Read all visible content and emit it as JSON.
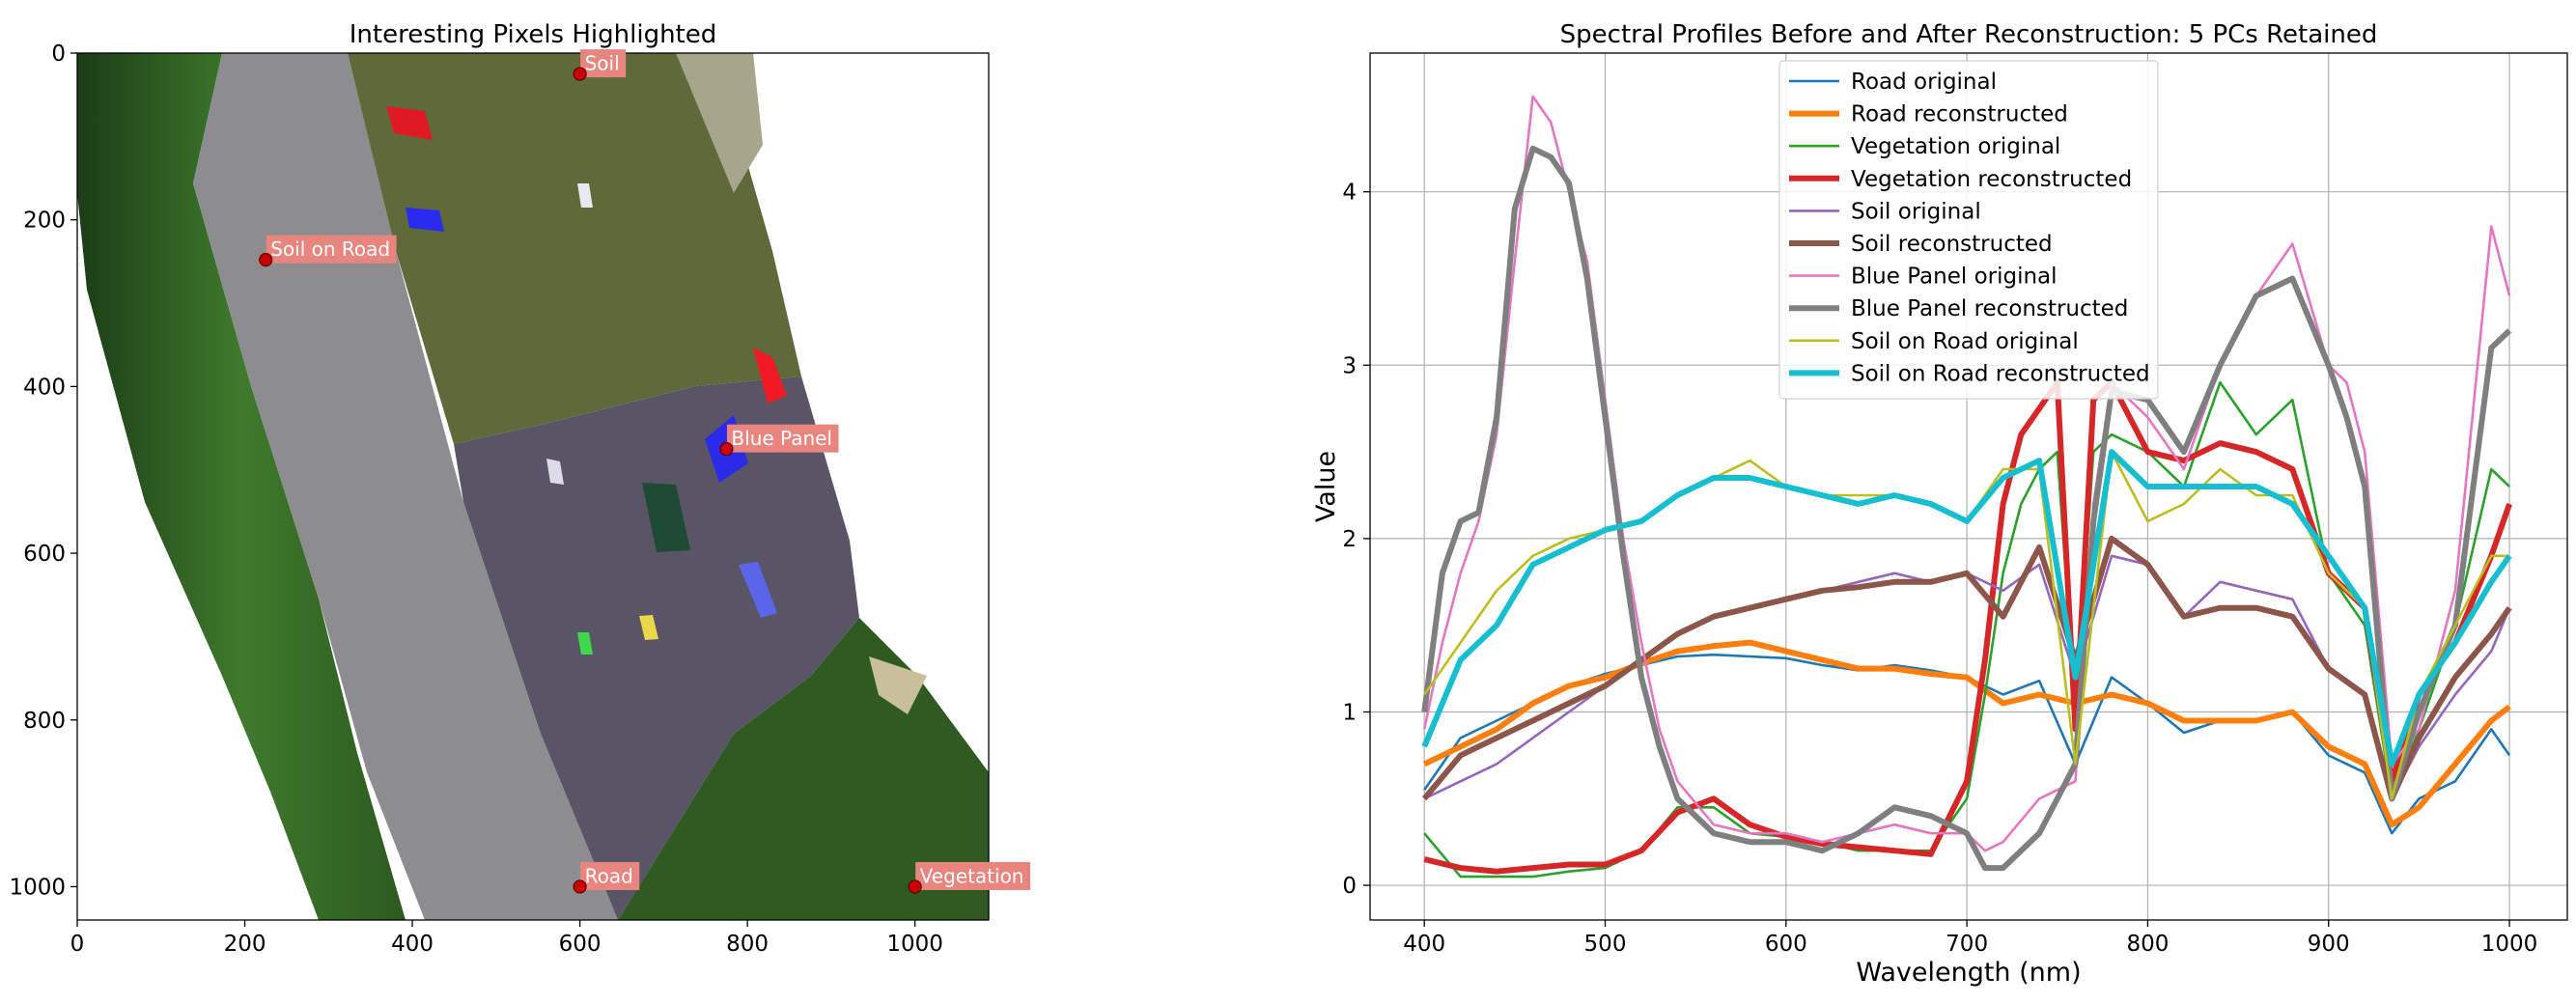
{
  "chart_data": [
    {
      "type": "image",
      "title": "Interesting Pixels Highlighted",
      "xlim": [
        0,
        1088
      ],
      "ylim": [
        1040,
        0
      ],
      "x_ticks": [
        0,
        200,
        400,
        600,
        800,
        1000
      ],
      "y_ticks": [
        0,
        200,
        400,
        600,
        800,
        1000
      ],
      "points": [
        {
          "label": "Soil",
          "x": 600,
          "y": 25
        },
        {
          "label": "Soil on Road",
          "x": 225,
          "y": 248
        },
        {
          "label": "Blue Panel",
          "x": 775,
          "y": 475
        },
        {
          "label": "Road",
          "x": 600,
          "y": 1000
        },
        {
          "label": "Vegetation",
          "x": 1000,
          "y": 1000
        }
      ],
      "marker_color": "#cc0000",
      "annotation_color": "#e8857f"
    },
    {
      "type": "line",
      "title": "Spectral Profiles Before and After Reconstruction: 5 PCs Retained",
      "xlabel": "Wavelength (nm)",
      "ylabel": "Value",
      "xlim": [
        370,
        1032
      ],
      "ylim": [
        -0.2,
        4.8
      ],
      "x_ticks": [
        400,
        500,
        600,
        700,
        800,
        900,
        1000
      ],
      "y_ticks": [
        0,
        1,
        2,
        3,
        4
      ],
      "grid": true,
      "legend_position": "top-center",
      "series": [
        {
          "name": "Road original",
          "color": "#1f77b4",
          "reconstructed": false,
          "x": [
            400,
            420,
            440,
            460,
            480,
            500,
            520,
            540,
            560,
            580,
            600,
            620,
            640,
            660,
            680,
            700,
            720,
            740,
            760,
            780,
            800,
            820,
            840,
            860,
            880,
            900,
            920,
            935,
            950,
            970,
            990,
            1000
          ],
          "y": [
            0.55,
            0.85,
            0.95,
            1.05,
            1.15,
            1.22,
            1.27,
            1.32,
            1.33,
            1.32,
            1.31,
            1.27,
            1.24,
            1.27,
            1.24,
            1.2,
            1.1,
            1.18,
            0.7,
            1.2,
            1.05,
            0.88,
            0.95,
            0.95,
            1.0,
            0.75,
            0.65,
            0.3,
            0.5,
            0.6,
            0.9,
            0.75
          ]
        },
        {
          "name": "Road reconstructed",
          "color": "#ff7f0e",
          "reconstructed": true,
          "x": [
            400,
            420,
            440,
            460,
            480,
            500,
            520,
            540,
            560,
            580,
            600,
            620,
            640,
            660,
            680,
            700,
            720,
            740,
            760,
            780,
            800,
            820,
            840,
            860,
            880,
            900,
            920,
            935,
            950,
            970,
            990,
            1000
          ],
          "y": [
            0.7,
            0.8,
            0.9,
            1.05,
            1.15,
            1.2,
            1.28,
            1.35,
            1.38,
            1.4,
            1.35,
            1.3,
            1.25,
            1.25,
            1.22,
            1.2,
            1.05,
            1.1,
            1.05,
            1.1,
            1.05,
            0.95,
            0.95,
            0.95,
            1.0,
            0.8,
            0.7,
            0.35,
            0.45,
            0.7,
            0.95,
            1.03
          ]
        },
        {
          "name": "Vegetation original",
          "color": "#2ca02c",
          "reconstructed": false,
          "x": [
            400,
            420,
            440,
            460,
            480,
            500,
            520,
            540,
            560,
            580,
            600,
            620,
            640,
            660,
            680,
            700,
            710,
            720,
            730,
            740,
            750,
            760,
            770,
            780,
            800,
            820,
            840,
            860,
            880,
            900,
            920,
            935,
            950,
            970,
            990,
            1000
          ],
          "y": [
            0.3,
            0.05,
            0.05,
            0.05,
            0.08,
            0.1,
            0.2,
            0.45,
            0.45,
            0.3,
            0.28,
            0.25,
            0.2,
            0.2,
            0.2,
            0.5,
            1.1,
            1.8,
            2.2,
            2.4,
            2.5,
            1.0,
            2.5,
            2.6,
            2.5,
            2.3,
            2.9,
            2.6,
            2.8,
            1.8,
            1.5,
            0.5,
            0.9,
            1.5,
            2.4,
            2.3
          ]
        },
        {
          "name": "Vegetation reconstructed",
          "color": "#d62728",
          "reconstructed": true,
          "x": [
            400,
            420,
            440,
            460,
            480,
            500,
            520,
            540,
            560,
            580,
            600,
            620,
            640,
            660,
            680,
            700,
            710,
            720,
            730,
            740,
            750,
            760,
            770,
            780,
            800,
            820,
            840,
            860,
            880,
            900,
            920,
            935,
            950,
            970,
            990,
            1000
          ],
          "y": [
            0.15,
            0.1,
            0.08,
            0.1,
            0.12,
            0.12,
            0.2,
            0.42,
            0.5,
            0.35,
            0.28,
            0.24,
            0.22,
            0.2,
            0.18,
            0.6,
            1.3,
            2.2,
            2.6,
            2.75,
            2.9,
            0.9,
            2.8,
            2.9,
            2.5,
            2.45,
            2.55,
            2.5,
            2.4,
            1.8,
            1.6,
            0.6,
            1.1,
            1.4,
            1.9,
            2.2
          ]
        },
        {
          "name": "Soil original",
          "color": "#9467bd",
          "reconstructed": false,
          "x": [
            400,
            420,
            440,
            460,
            480,
            500,
            520,
            540,
            560,
            580,
            600,
            620,
            640,
            660,
            680,
            700,
            720,
            740,
            760,
            780,
            800,
            820,
            840,
            860,
            880,
            900,
            920,
            935,
            950,
            970,
            990,
            1000
          ],
          "y": [
            0.5,
            0.6,
            0.7,
            0.85,
            1.0,
            1.15,
            1.3,
            1.45,
            1.55,
            1.6,
            1.65,
            1.7,
            1.75,
            1.8,
            1.75,
            1.8,
            1.7,
            1.85,
            1.2,
            1.9,
            1.85,
            1.55,
            1.75,
            1.7,
            1.65,
            1.25,
            1.1,
            0.5,
            0.8,
            1.1,
            1.35,
            1.6
          ]
        },
        {
          "name": "Soil reconstructed",
          "color": "#8c564b",
          "reconstructed": true,
          "x": [
            400,
            420,
            440,
            460,
            480,
            500,
            520,
            540,
            560,
            580,
            600,
            620,
            640,
            660,
            680,
            700,
            720,
            740,
            760,
            780,
            800,
            820,
            840,
            860,
            880,
            900,
            920,
            935,
            950,
            970,
            990,
            1000
          ],
          "y": [
            0.5,
            0.75,
            0.85,
            0.95,
            1.05,
            1.15,
            1.3,
            1.45,
            1.55,
            1.6,
            1.65,
            1.7,
            1.72,
            1.75,
            1.75,
            1.8,
            1.55,
            1.95,
            1.3,
            2.0,
            1.85,
            1.55,
            1.6,
            1.6,
            1.55,
            1.25,
            1.1,
            0.5,
            0.85,
            1.2,
            1.45,
            1.6
          ]
        },
        {
          "name": "Blue Panel original",
          "color": "#e377c2",
          "reconstructed": false,
          "x": [
            400,
            410,
            420,
            430,
            440,
            450,
            460,
            470,
            480,
            490,
            500,
            510,
            520,
            530,
            540,
            560,
            580,
            600,
            620,
            640,
            660,
            680,
            700,
            710,
            720,
            740,
            760,
            770,
            780,
            800,
            820,
            840,
            860,
            880,
            900,
            910,
            920,
            935,
            950,
            970,
            990,
            1000
          ],
          "y": [
            0.9,
            1.4,
            1.8,
            2.1,
            2.6,
            3.6,
            4.55,
            4.4,
            4.0,
            3.6,
            2.8,
            2.0,
            1.4,
            0.9,
            0.6,
            0.35,
            0.3,
            0.3,
            0.25,
            0.3,
            0.35,
            0.3,
            0.3,
            0.2,
            0.25,
            0.5,
            0.6,
            2.2,
            2.9,
            2.7,
            2.4,
            3.0,
            3.4,
            3.7,
            3.0,
            2.9,
            2.5,
            0.7,
            0.9,
            1.7,
            3.8,
            3.4
          ]
        },
        {
          "name": "Blue Panel reconstructed",
          "color": "#7f7f7f",
          "reconstructed": true,
          "x": [
            400,
            410,
            420,
            430,
            440,
            450,
            460,
            470,
            480,
            490,
            500,
            510,
            520,
            530,
            540,
            560,
            580,
            600,
            620,
            640,
            660,
            680,
            700,
            710,
            720,
            740,
            760,
            770,
            780,
            800,
            820,
            840,
            860,
            880,
            900,
            910,
            920,
            935,
            950,
            970,
            990,
            1000
          ],
          "y": [
            1.0,
            1.8,
            2.1,
            2.15,
            2.7,
            3.9,
            4.25,
            4.2,
            4.05,
            3.5,
            2.7,
            1.9,
            1.2,
            0.8,
            0.5,
            0.3,
            0.25,
            0.25,
            0.2,
            0.3,
            0.45,
            0.4,
            0.3,
            0.1,
            0.1,
            0.3,
            0.7,
            2.1,
            2.85,
            2.8,
            2.5,
            3.0,
            3.4,
            3.5,
            3.0,
            2.7,
            2.3,
            0.5,
            1.0,
            1.5,
            3.1,
            3.2
          ]
        },
        {
          "name": "Soil on Road original",
          "color": "#bcbd22",
          "reconstructed": false,
          "x": [
            400,
            420,
            440,
            460,
            480,
            500,
            520,
            540,
            560,
            580,
            600,
            620,
            640,
            660,
            680,
            700,
            720,
            740,
            760,
            780,
            800,
            820,
            840,
            860,
            880,
            900,
            920,
            935,
            950,
            970,
            990,
            1000
          ],
          "y": [
            1.1,
            1.4,
            1.7,
            1.9,
            2.0,
            2.05,
            2.1,
            2.25,
            2.35,
            2.45,
            2.3,
            2.25,
            2.25,
            2.25,
            2.2,
            2.1,
            2.4,
            2.4,
            0.7,
            2.5,
            2.1,
            2.2,
            2.4,
            2.25,
            2.25,
            1.8,
            1.6,
            0.5,
            1.1,
            1.5,
            1.9,
            1.9
          ]
        },
        {
          "name": "Soil on Road reconstructed",
          "color": "#17becf",
          "reconstructed": true,
          "x": [
            400,
            420,
            440,
            460,
            480,
            500,
            520,
            540,
            560,
            580,
            600,
            620,
            640,
            660,
            680,
            700,
            720,
            740,
            760,
            780,
            800,
            820,
            840,
            860,
            880,
            900,
            920,
            935,
            950,
            970,
            990,
            1000
          ],
          "y": [
            0.8,
            1.3,
            1.5,
            1.85,
            1.95,
            2.05,
            2.1,
            2.25,
            2.35,
            2.35,
            2.3,
            2.25,
            2.2,
            2.25,
            2.2,
            2.1,
            2.35,
            2.45,
            1.2,
            2.5,
            2.3,
            2.3,
            2.3,
            2.3,
            2.2,
            1.9,
            1.6,
            0.7,
            1.1,
            1.4,
            1.75,
            1.9
          ]
        }
      ]
    }
  ]
}
